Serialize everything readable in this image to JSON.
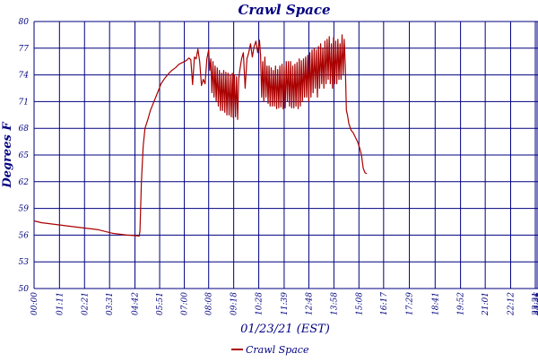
{
  "chart_data": {
    "type": "line",
    "title": "Crawl Space",
    "xlabel": "01/23/21 (EST)",
    "ylabel": "Degrees F",
    "ylim": [
      50,
      80
    ],
    "y_ticks": [
      50,
      53,
      56,
      59,
      62,
      65,
      68,
      71,
      74,
      77,
      80
    ],
    "x_tick_labels": [
      "00:00",
      "01:11",
      "02:21",
      "03:31",
      "04:42",
      "05:51",
      "07:00",
      "08:08",
      "09:18",
      "10:28",
      "11:39",
      "12:48",
      "13:58",
      "15:08",
      "16:17",
      "17:29",
      "18:41",
      "19:52",
      "21:01",
      "22:12",
      "23:21",
      "23:26",
      "23:31"
    ],
    "x_tick_minutes": [
      0,
      71,
      141,
      211,
      282,
      351,
      420,
      488,
      558,
      628,
      699,
      768,
      838,
      908,
      977,
      1049,
      1121,
      1192,
      1261,
      1332,
      1401,
      1406,
      1411
    ],
    "xlim_minutes": [
      0,
      1411
    ],
    "grid": true,
    "legend_position": "bottom-center",
    "colors": {
      "series": "#aa0000",
      "grid": "#000080",
      "text": "#000080",
      "background": "#ffffff"
    },
    "series": [
      {
        "name": "Crawl Space",
        "points": [
          [
            0,
            57.6
          ],
          [
            20,
            57.4
          ],
          [
            40,
            57.3
          ],
          [
            60,
            57.2
          ],
          [
            80,
            57.1
          ],
          [
            100,
            57.0
          ],
          [
            120,
            56.9
          ],
          [
            140,
            56.8
          ],
          [
            160,
            56.7
          ],
          [
            180,
            56.6
          ],
          [
            200,
            56.4
          ],
          [
            220,
            56.2
          ],
          [
            240,
            56.1
          ],
          [
            260,
            56.0
          ],
          [
            280,
            55.95
          ],
          [
            294,
            55.9
          ],
          [
            296,
            56.5
          ],
          [
            300,
            62
          ],
          [
            305,
            66
          ],
          [
            310,
            68
          ],
          [
            318,
            69
          ],
          [
            325,
            70
          ],
          [
            335,
            71
          ],
          [
            345,
            72
          ],
          [
            355,
            73
          ],
          [
            365,
            73.6
          ],
          [
            375,
            74.1
          ],
          [
            385,
            74.5
          ],
          [
            395,
            74.8
          ],
          [
            405,
            75.2
          ],
          [
            415,
            75.4
          ],
          [
            425,
            75.6
          ],
          [
            433,
            75.9
          ],
          [
            438,
            75.7
          ],
          [
            443,
            72.9
          ],
          [
            448,
            76.0
          ],
          [
            453,
            75.8
          ],
          [
            458,
            76.9
          ],
          [
            463,
            75.5
          ],
          [
            468,
            72.8
          ],
          [
            473,
            73.5
          ],
          [
            478,
            73.0
          ],
          [
            483,
            75.8
          ],
          [
            488,
            76.8
          ],
          [
            491,
            74.5
          ],
          [
            494,
            75.8
          ],
          [
            497,
            72.0
          ],
          [
            500,
            75.5
          ],
          [
            503,
            71.5
          ],
          [
            506,
            75.0
          ],
          [
            509,
            71.0
          ],
          [
            512,
            74.8
          ],
          [
            515,
            70.5
          ],
          [
            518,
            74.5
          ],
          [
            521,
            70.0
          ],
          [
            524,
            74.2
          ],
          [
            527,
            70.0
          ],
          [
            530,
            74.5
          ],
          [
            533,
            69.8
          ],
          [
            536,
            74.3
          ],
          [
            539,
            69.5
          ],
          [
            542,
            74.2
          ],
          [
            545,
            69.5
          ],
          [
            548,
            74.0
          ],
          [
            551,
            69.3
          ],
          [
            554,
            74.2
          ],
          [
            557,
            69.2
          ],
          [
            560,
            74.0
          ],
          [
            563,
            69.3
          ],
          [
            566,
            73.8
          ],
          [
            569,
            69.0
          ],
          [
            572,
            73.5
          ],
          [
            575,
            74.5
          ],
          [
            580,
            75.8
          ],
          [
            585,
            76.5
          ],
          [
            590,
            72.5
          ],
          [
            595,
            75.8
          ],
          [
            600,
            76.5
          ],
          [
            605,
            77.5
          ],
          [
            610,
            76.0
          ],
          [
            615,
            77.2
          ],
          [
            620,
            77.8
          ],
          [
            625,
            76.5
          ],
          [
            630,
            77.9
          ],
          [
            633,
            76.2
          ],
          [
            636,
            71.5
          ],
          [
            639,
            75.5
          ],
          [
            642,
            71.0
          ],
          [
            645,
            76.0
          ],
          [
            648,
            71.5
          ],
          [
            651,
            75.0
          ],
          [
            654,
            70.8
          ],
          [
            657,
            75.0
          ],
          [
            660,
            70.5
          ],
          [
            663,
            74.8
          ],
          [
            666,
            70.5
          ],
          [
            669,
            74.5
          ],
          [
            672,
            70.5
          ],
          [
            675,
            75.0
          ],
          [
            678,
            70.2
          ],
          [
            681,
            74.6
          ],
          [
            684,
            70.3
          ],
          [
            687,
            75.0
          ],
          [
            690,
            70.4
          ],
          [
            693,
            75.2
          ],
          [
            696,
            70.2
          ],
          [
            699,
            75.0
          ],
          [
            702,
            70.3
          ],
          [
            705,
            75.5
          ],
          [
            708,
            71.0
          ],
          [
            711,
            75.5
          ],
          [
            714,
            70.5
          ],
          [
            717,
            75.5
          ],
          [
            720,
            70.3
          ],
          [
            723,
            75.0
          ],
          [
            726,
            70.3
          ],
          [
            729,
            75.2
          ],
          [
            732,
            70.5
          ],
          [
            735,
            75.4
          ],
          [
            738,
            70.2
          ],
          [
            741,
            75.8
          ],
          [
            744,
            70.5
          ],
          [
            747,
            75.6
          ],
          [
            750,
            71.0
          ],
          [
            753,
            75.8
          ],
          [
            756,
            71.5
          ],
          [
            759,
            76.0
          ],
          [
            762,
            71.5
          ],
          [
            765,
            76.2
          ],
          [
            768,
            71.0
          ],
          [
            771,
            76.5
          ],
          [
            774,
            71.5
          ],
          [
            777,
            76.8
          ],
          [
            780,
            72.0
          ],
          [
            783,
            77.0
          ],
          [
            786,
            72.5
          ],
          [
            789,
            76.8
          ],
          [
            792,
            71.5
          ],
          [
            795,
            77.2
          ],
          [
            798,
            72.5
          ],
          [
            801,
            77.5
          ],
          [
            804,
            73.0
          ],
          [
            807,
            77.0
          ],
          [
            810,
            72.5
          ],
          [
            813,
            77.8
          ],
          [
            816,
            73.0
          ],
          [
            819,
            78.0
          ],
          [
            822,
            73.5
          ],
          [
            825,
            78.3
          ],
          [
            828,
            73.0
          ],
          [
            831,
            77.5
          ],
          [
            834,
            72.5
          ],
          [
            837,
            78.2
          ],
          [
            840,
            73.0
          ],
          [
            843,
            77.8
          ],
          [
            846,
            73.0
          ],
          [
            849,
            78.0
          ],
          [
            852,
            73.5
          ],
          [
            855,
            77.5
          ],
          [
            858,
            73.5
          ],
          [
            861,
            78.5
          ],
          [
            864,
            74.0
          ],
          [
            867,
            78.0
          ],
          [
            870,
            75.0
          ],
          [
            873,
            70.0
          ],
          [
            876,
            69.5
          ],
          [
            880,
            68.5
          ],
          [
            886,
            67.8
          ],
          [
            892,
            67.5
          ],
          [
            898,
            67.0
          ],
          [
            904,
            66.5
          ],
          [
            910,
            65.8
          ],
          [
            915,
            65.0
          ],
          [
            920,
            63.5
          ],
          [
            925,
            63.0
          ],
          [
            930,
            62.9
          ]
        ]
      }
    ]
  }
}
